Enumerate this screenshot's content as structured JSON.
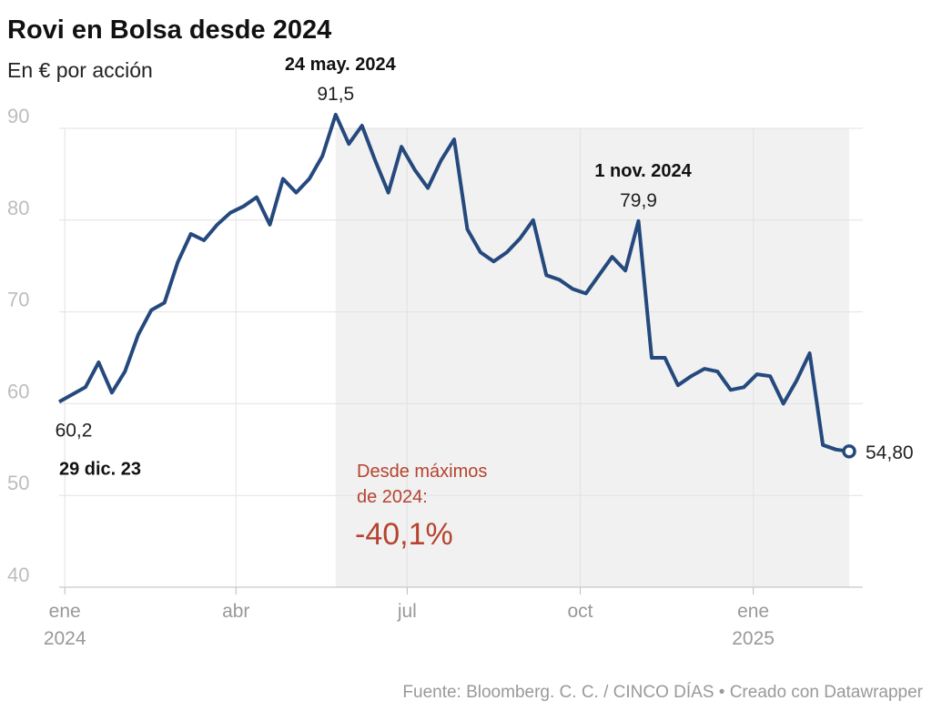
{
  "chart_data": {
    "type": "line",
    "title": "Rovi en Bolsa desde 2024",
    "subtitle": "En € por acción",
    "source": "Fuente: Bloomberg. C. C. / CINCO DÍAS • Creado con Datawrapper",
    "x": [
      "2023-12-29",
      "2024-01-05",
      "2024-01-12",
      "2024-01-19",
      "2024-01-26",
      "2024-02-02",
      "2024-02-09",
      "2024-02-16",
      "2024-02-23",
      "2024-03-01",
      "2024-03-08",
      "2024-03-15",
      "2024-03-22",
      "2024-03-29",
      "2024-04-05",
      "2024-04-12",
      "2024-04-19",
      "2024-04-26",
      "2024-05-03",
      "2024-05-10",
      "2024-05-17",
      "2024-05-24",
      "2024-05-31",
      "2024-06-07",
      "2024-06-14",
      "2024-06-21",
      "2024-06-28",
      "2024-07-05",
      "2024-07-12",
      "2024-07-19",
      "2024-07-26",
      "2024-08-02",
      "2024-08-09",
      "2024-08-16",
      "2024-08-23",
      "2024-08-30",
      "2024-09-06",
      "2024-09-13",
      "2024-09-20",
      "2024-09-27",
      "2024-10-04",
      "2024-10-11",
      "2024-10-18",
      "2024-10-25",
      "2024-11-01",
      "2024-11-08",
      "2024-11-15",
      "2024-11-22",
      "2024-11-29",
      "2024-12-06",
      "2024-12-13",
      "2024-12-20",
      "2024-12-27",
      "2025-01-03",
      "2025-01-10",
      "2025-01-17",
      "2025-01-24",
      "2025-01-31",
      "2025-02-07",
      "2025-02-14",
      "2025-02-21"
    ],
    "series": [
      {
        "name": "Rovi",
        "color": "#25497d",
        "values": [
          60.2,
          61.0,
          61.8,
          64.5,
          61.2,
          63.5,
          67.5,
          70.2,
          71.0,
          75.4,
          78.5,
          77.8,
          79.5,
          80.8,
          81.5,
          82.5,
          79.5,
          84.5,
          83.0,
          84.5,
          87.0,
          91.5,
          88.3,
          90.3,
          86.5,
          83.0,
          88.0,
          85.5,
          83.5,
          86.5,
          88.8,
          79.0,
          76.5,
          75.5,
          76.5,
          78.0,
          80.0,
          74.0,
          73.5,
          72.5,
          72.0,
          74.0,
          76.0,
          74.5,
          79.9,
          65.0,
          65.0,
          62.0,
          63.0,
          63.8,
          63.5,
          61.5,
          61.8,
          63.2,
          63.0,
          60.0,
          62.5,
          65.5,
          55.5,
          55.0,
          54.8
        ],
        "value_labels": [
          "60,2",
          null,
          null,
          null,
          null,
          null,
          null,
          null,
          null,
          null,
          null,
          null,
          null,
          null,
          null,
          null,
          null,
          null,
          null,
          null,
          null,
          "91,5",
          null,
          null,
          null,
          null,
          null,
          null,
          null,
          null,
          null,
          null,
          null,
          null,
          null,
          null,
          null,
          null,
          null,
          null,
          null,
          null,
          null,
          null,
          "79,9",
          null,
          null,
          null,
          null,
          null,
          null,
          null,
          null,
          null,
          null,
          null,
          null,
          null,
          null,
          null,
          "54,80"
        ]
      }
    ],
    "annotations": [
      {
        "x": "2023-12-29",
        "text": "29 dic. 23"
      },
      {
        "x": "2024-05-24",
        "text": "24 may. 2024"
      },
      {
        "x": "2024-11-01",
        "text": "1 nov. 2024"
      }
    ],
    "callout": {
      "text": [
        "Desde máximos",
        "de 2024:"
      ],
      "value_label": "-40,1%"
    },
    "xlim": [
      "2023-12-29",
      "2025-02-21"
    ],
    "xticks": [
      {
        "value": "2024-01-01",
        "label": "ene"
      },
      {
        "value": "2024-04-01",
        "label": "abr"
      },
      {
        "value": "2024-07-01",
        "label": "jul"
      },
      {
        "value": "2024-10-01",
        "label": "oct"
      },
      {
        "value": "2025-01-01",
        "label": "ene"
      }
    ],
    "xtick_years": [
      {
        "value": "2024-01-01",
        "label": "2024"
      },
      {
        "value": "2025-01-01",
        "label": "2025"
      }
    ],
    "ylim": [
      40,
      90
    ],
    "yticks": [
      40,
      50,
      60,
      70,
      80,
      90
    ],
    "grid": true
  }
}
